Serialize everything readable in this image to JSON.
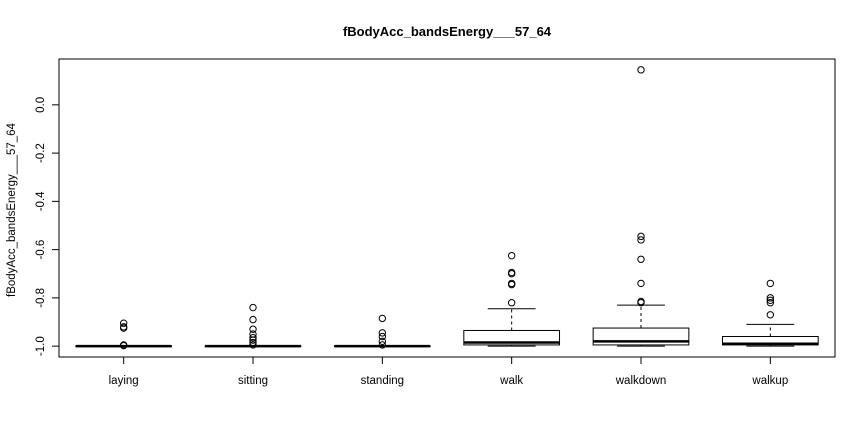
{
  "chart_data": {
    "type": "boxplot",
    "title": "fBodyAcc_bandsEnergy___57_64",
    "xlabel": "",
    "ylabel": "fBodyAcc_bandsEnergy___57_64",
    "ylim": [
      -1.045,
      0.19
    ],
    "yticks": [
      -1.0,
      -0.8,
      -0.6,
      -0.4,
      -0.2,
      0.0
    ],
    "ytick_labels": [
      "-1.0",
      "-0.8",
      "-0.6",
      "-0.4",
      "-0.2",
      "0.0"
    ],
    "grid": false,
    "categories": [
      "laying",
      "sitting",
      "standing",
      "walk",
      "walkdown",
      "walkup"
    ],
    "boxes": [
      {
        "category": "laying",
        "whisker_low": -1.0,
        "q1": -1.0,
        "median": -1.0,
        "q3": -1.0,
        "whisker_high": -1.0,
        "outliers": [
          -0.905,
          -0.92,
          -0.925,
          -0.995,
          -0.998
        ]
      },
      {
        "category": "sitting",
        "whisker_low": -1.0,
        "q1": -1.0,
        "median": -1.0,
        "q3": -1.0,
        "whisker_high": -1.0,
        "outliers": [
          -0.84,
          -0.89,
          -0.93,
          -0.95,
          -0.965,
          -0.975,
          -0.985,
          -0.995
        ]
      },
      {
        "category": "standing",
        "whisker_low": -1.0,
        "q1": -1.0,
        "median": -1.0,
        "q3": -1.0,
        "whisker_high": -1.0,
        "outliers": [
          -0.885,
          -0.945,
          -0.96,
          -0.98,
          -0.995
        ]
      },
      {
        "category": "walk",
        "whisker_low": -1.0,
        "q1": -0.995,
        "median": -0.985,
        "q3": -0.935,
        "whisker_high": -0.845,
        "outliers": [
          -0.625,
          -0.695,
          -0.7,
          -0.74,
          -0.745,
          -0.82
        ]
      },
      {
        "category": "walkdown",
        "whisker_low": -1.0,
        "q1": -0.995,
        "median": -0.98,
        "q3": -0.925,
        "whisker_high": -0.83,
        "outliers": [
          0.145,
          -0.545,
          -0.56,
          -0.64,
          -0.74,
          -0.815,
          -0.82
        ]
      },
      {
        "category": "walkup",
        "whisker_low": -1.0,
        "q1": -0.995,
        "median": -0.99,
        "q3": -0.96,
        "whisker_high": -0.91,
        "outliers": [
          -0.74,
          -0.8,
          -0.81,
          -0.82,
          -0.87
        ]
      }
    ]
  }
}
